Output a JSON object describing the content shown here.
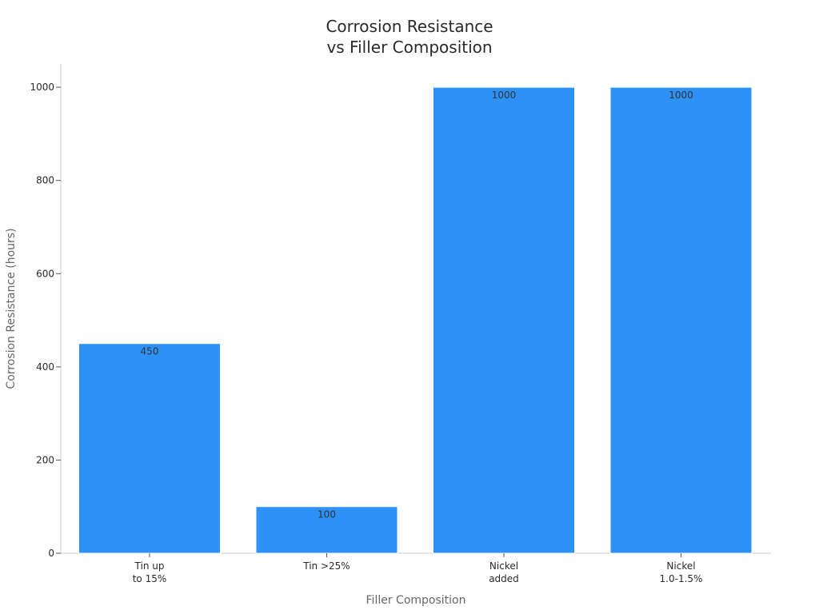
{
  "chart_data": {
    "type": "bar",
    "title": [
      "Corrosion Resistance",
      "vs Filler Composition"
    ],
    "xlabel": "Filler Composition",
    "ylabel": "Corrosion Resistance (hours)",
    "categories": [
      [
        "Tin up",
        "to 15%"
      ],
      [
        "Tin >25%"
      ],
      [
        "Nickel",
        "added"
      ],
      [
        "Nickel",
        "1.0-1.5%"
      ]
    ],
    "values": [
      450,
      100,
      1000,
      1000
    ],
    "data_labels": [
      "450",
      "100",
      "1000",
      "1000"
    ],
    "ylim": [
      0,
      1050
    ],
    "yticks": [
      0,
      200,
      400,
      600,
      800,
      1000
    ],
    "grid": false,
    "legend": "none",
    "colors": {
      "bar": "#2e91f7",
      "bar_edge": "#ffffff"
    }
  }
}
